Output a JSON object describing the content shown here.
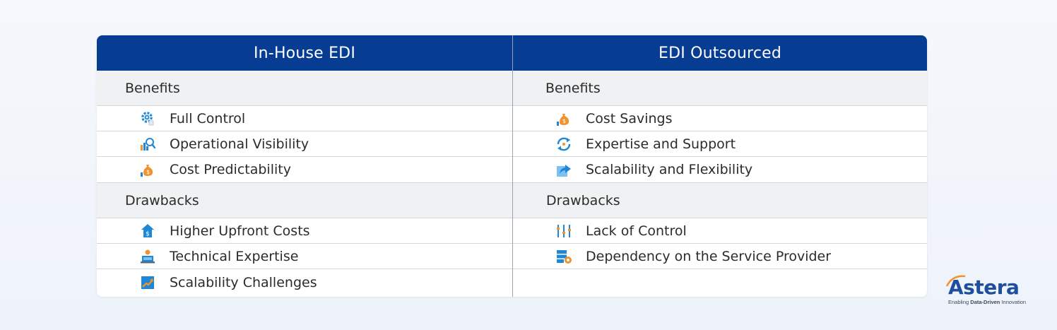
{
  "columns": {
    "left": {
      "title": "In-House EDI",
      "benefits_label": "Benefits",
      "benefits": [
        {
          "label": "Full Control",
          "icon": "gear-icon"
        },
        {
          "label": "Operational Visibility",
          "icon": "chart-magnifier-icon"
        },
        {
          "label": "Cost Predictability",
          "icon": "money-bag-icon"
        }
      ],
      "drawbacks_label": "Drawbacks",
      "drawbacks": [
        {
          "label": "Higher Upfront Costs",
          "icon": "house-dollar-icon"
        },
        {
          "label": "Technical Expertise",
          "icon": "technician-icon"
        },
        {
          "label": "Scalability Challenges",
          "icon": "growth-arrow-icon"
        }
      ]
    },
    "right": {
      "title": "EDI Outsourced",
      "benefits_label": "Benefits",
      "benefits": [
        {
          "label": "Cost Savings",
          "icon": "money-bag-icon"
        },
        {
          "label": "Expertise and Support",
          "icon": "refresh-support-icon"
        },
        {
          "label": "Scalability and Flexibility",
          "icon": "share-arrow-icon"
        }
      ],
      "drawbacks_label": "Drawbacks",
      "drawbacks": [
        {
          "label": "Lack of Control",
          "icon": "control-sliders-icon"
        },
        {
          "label": "Dependency on the Service Provider",
          "icon": "server-dependency-icon"
        }
      ]
    }
  },
  "logo": {
    "name": "Astera",
    "tagline_prefix": "Enabling ",
    "tagline_bold": "Data-Driven",
    "tagline_suffix": " Innovation"
  },
  "colors": {
    "header_bg": "#073c93",
    "section_bg": "#f0f1f2",
    "icon_blue": "#1e88d6",
    "icon_orange": "#f0922e"
  }
}
